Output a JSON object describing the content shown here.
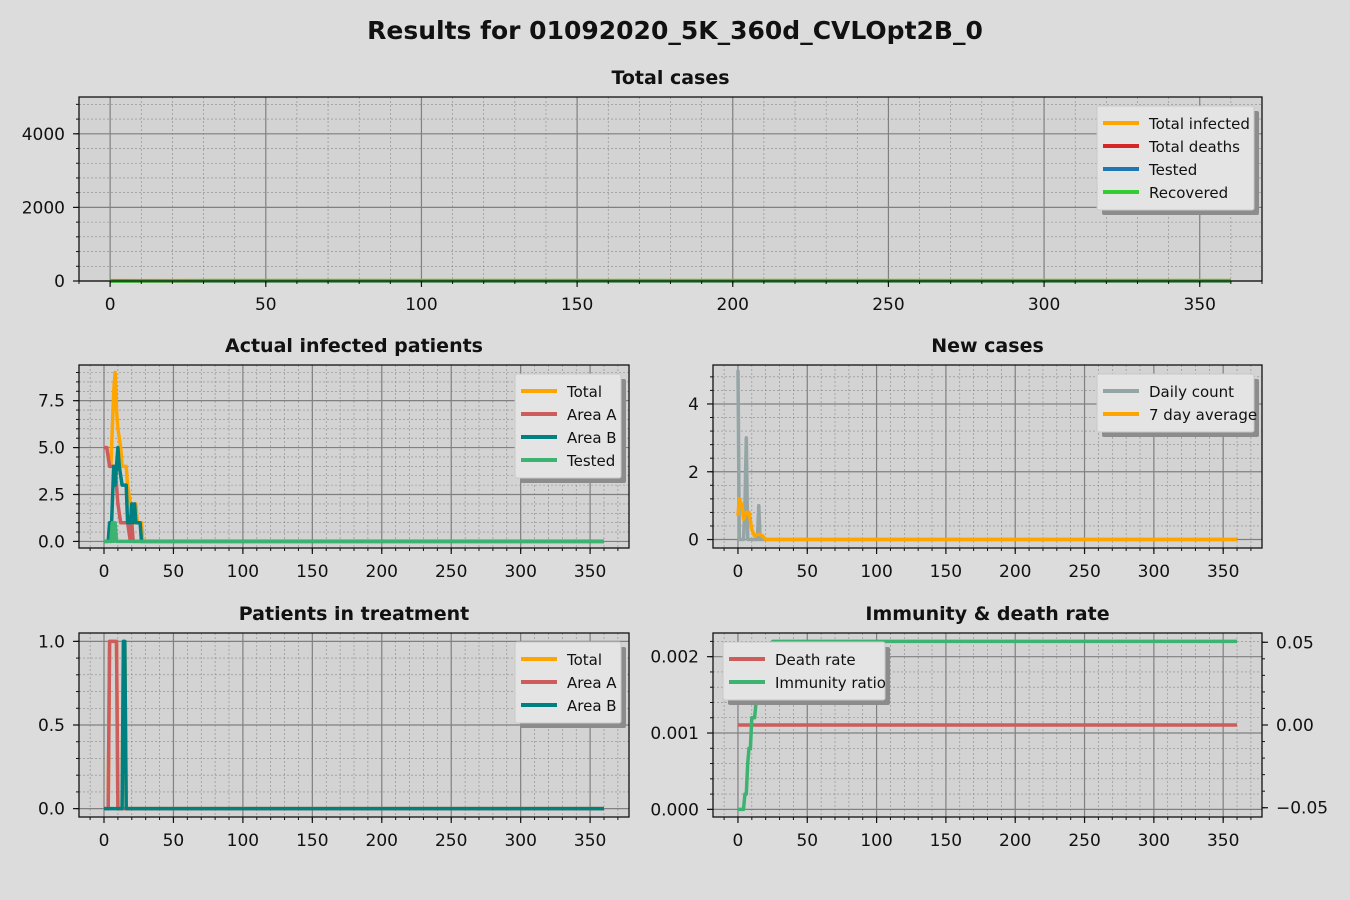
{
  "title": "Results for 01092020_5K_360d_CVLOpt2B_0",
  "chart_data": [
    {
      "id": "total-cases",
      "type": "line",
      "title": "Total cases",
      "xlim": [
        -10,
        370
      ],
      "ylim": [
        0,
        5000
      ],
      "xticks": [
        0,
        50,
        100,
        150,
        200,
        250,
        300,
        350
      ],
      "yticks": [
        0,
        2000,
        4000
      ],
      "ytick_labels": [
        "0",
        "2000",
        "4000"
      ],
      "grid": true,
      "legend_position": "top-right",
      "series": [
        {
          "name": "Total infected",
          "color": "#ffa500",
          "points": [
            [
              0,
              10
            ],
            [
              360,
              10
            ]
          ]
        },
        {
          "name": "Total deaths",
          "color": "#d62728",
          "points": [
            [
              0,
              0
            ],
            [
              360,
              0
            ]
          ]
        },
        {
          "name": "Tested",
          "color": "#1f77b4",
          "points": [
            [
              0,
              4
            ],
            [
              360,
              4
            ]
          ]
        },
        {
          "name": "Recovered",
          "color": "#32cd32",
          "points": [
            [
              0,
              0
            ],
            [
              10,
              2
            ],
            [
              30,
              10
            ],
            [
              360,
              10
            ]
          ]
        }
      ]
    },
    {
      "id": "actual-infected",
      "type": "line",
      "title": "Actual infected patients",
      "xlim": [
        -18,
        378
      ],
      "ylim": [
        -0.35,
        9.4
      ],
      "xticks": [
        0,
        50,
        100,
        150,
        200,
        250,
        300,
        350
      ],
      "yticks": [
        0,
        2.5,
        5,
        7.5
      ],
      "ytick_labels": [
        "0.0",
        "2.5",
        "5.0",
        "7.5"
      ],
      "grid": true,
      "legend_position": "top-right",
      "series": [
        {
          "name": "Total",
          "color": "#ffa500",
          "points": [
            [
              0,
              5
            ],
            [
              2,
              5
            ],
            [
              4,
              4
            ],
            [
              5,
              4
            ],
            [
              6,
              6
            ],
            [
              7,
              8
            ],
            [
              8,
              9
            ],
            [
              9,
              7
            ],
            [
              10,
              6
            ],
            [
              12,
              5
            ],
            [
              13,
              4
            ],
            [
              16,
              4
            ],
            [
              17,
              3
            ],
            [
              19,
              2
            ],
            [
              20,
              1
            ],
            [
              22,
              1
            ],
            [
              23,
              2
            ],
            [
              24,
              1
            ],
            [
              25,
              1
            ],
            [
              27,
              1
            ],
            [
              28,
              0
            ],
            [
              360,
              0
            ]
          ]
        },
        {
          "name": "Area A",
          "color": "#cd5c5c",
          "points": [
            [
              0,
              5
            ],
            [
              2,
              5
            ],
            [
              4,
              4
            ],
            [
              6,
              4
            ],
            [
              8,
              4
            ],
            [
              10,
              2
            ],
            [
              12,
              1
            ],
            [
              15,
              1
            ],
            [
              17,
              1
            ],
            [
              19,
              0
            ],
            [
              20,
              1
            ],
            [
              21,
              0
            ],
            [
              360,
              0
            ]
          ]
        },
        {
          "name": "Area B",
          "color": "#008080",
          "points": [
            [
              0,
              0
            ],
            [
              3,
              0
            ],
            [
              4,
              1
            ],
            [
              5,
              0
            ],
            [
              6,
              2
            ],
            [
              7,
              4
            ],
            [
              8,
              3
            ],
            [
              9,
              4
            ],
            [
              10,
              5
            ],
            [
              11,
              4
            ],
            [
              13,
              3
            ],
            [
              16,
              3
            ],
            [
              17,
              1
            ],
            [
              19,
              1
            ],
            [
              20,
              2
            ],
            [
              21,
              1
            ],
            [
              22,
              2
            ],
            [
              23,
              1
            ],
            [
              26,
              1
            ],
            [
              27,
              0
            ],
            [
              360,
              0
            ]
          ]
        },
        {
          "name": "Tested",
          "color": "#3cb371",
          "points": [
            [
              0,
              0
            ],
            [
              5,
              0
            ],
            [
              6,
              1
            ],
            [
              7,
              0
            ],
            [
              8,
              1
            ],
            [
              9,
              0
            ],
            [
              360,
              0
            ]
          ]
        }
      ]
    },
    {
      "id": "new-cases",
      "type": "line",
      "title": "New cases",
      "xlim": [
        -18,
        378
      ],
      "ylim": [
        -0.25,
        5.15
      ],
      "xticks": [
        0,
        50,
        100,
        150,
        200,
        250,
        300,
        350
      ],
      "yticks": [
        0,
        2,
        4
      ],
      "ytick_labels": [
        "0",
        "2",
        "4"
      ],
      "grid": true,
      "legend_position": "top-right",
      "series": [
        {
          "name": "Daily count",
          "color": "#95a5a6",
          "points": [
            [
              0,
              5
            ],
            [
              1,
              0
            ],
            [
              4,
              0
            ],
            [
              5,
              1
            ],
            [
              6,
              3
            ],
            [
              7,
              0
            ],
            [
              14,
              0
            ],
            [
              15,
              1
            ],
            [
              16,
              0
            ],
            [
              360,
              0
            ]
          ]
        },
        {
          "name": "7 day average",
          "color": "#ffa500",
          "points": [
            [
              0,
              0.7
            ],
            [
              1,
              1.2
            ],
            [
              3,
              1.0
            ],
            [
              4,
              0.6
            ],
            [
              6,
              0.8
            ],
            [
              8,
              0.8
            ],
            [
              10,
              0.3
            ],
            [
              12,
              0.1
            ],
            [
              14,
              0.15
            ],
            [
              16,
              0.15
            ],
            [
              18,
              0.1
            ],
            [
              20,
              0
            ],
            [
              360,
              0
            ]
          ]
        }
      ]
    },
    {
      "id": "patients-in-treatment",
      "type": "line",
      "title": "Patients in treatment",
      "xlim": [
        -18,
        378
      ],
      "ylim": [
        -0.05,
        1.05
      ],
      "xticks": [
        0,
        50,
        100,
        150,
        200,
        250,
        300,
        350
      ],
      "yticks": [
        0,
        0.5,
        1
      ],
      "ytick_labels": [
        "0.0",
        "0.5",
        "1.0"
      ],
      "grid": true,
      "legend_position": "top-right",
      "series": [
        {
          "name": "Total",
          "color": "#ffa500",
          "points": [
            [
              0,
              0
            ],
            [
              3,
              0
            ],
            [
              4,
              1
            ],
            [
              9,
              1
            ],
            [
              10,
              0
            ],
            [
              13,
              0
            ],
            [
              14,
              1
            ],
            [
              15,
              1
            ],
            [
              16,
              0
            ],
            [
              360,
              0
            ]
          ]
        },
        {
          "name": "Area A",
          "color": "#cd5c5c",
          "points": [
            [
              0,
              0
            ],
            [
              3,
              0
            ],
            [
              4,
              1
            ],
            [
              9,
              1
            ],
            [
              10,
              0
            ],
            [
              360,
              0
            ]
          ]
        },
        {
          "name": "Area B",
          "color": "#008080",
          "points": [
            [
              0,
              0
            ],
            [
              13,
              0
            ],
            [
              14,
              1
            ],
            [
              15,
              1
            ],
            [
              16,
              0
            ],
            [
              360,
              0
            ]
          ]
        }
      ]
    },
    {
      "id": "immunity-death-rate",
      "type": "line",
      "title": "Immunity & death rate",
      "xlim": [
        -18,
        378
      ],
      "ylim": [
        -0.0001,
        0.00231
      ],
      "xticks": [
        0,
        50,
        100,
        150,
        200,
        250,
        300,
        350
      ],
      "yticks": [
        0,
        0.001,
        0.002
      ],
      "ytick_labels": [
        "0.000",
        "0.001",
        "0.002"
      ],
      "y2lim": [
        -0.0556,
        0.0556
      ],
      "y2ticks": [
        -0.05,
        0,
        0.05
      ],
      "y2tick_labels": [
        "−0.05",
        "0.00",
        "0.05"
      ],
      "grid": true,
      "legend_position": "top-left",
      "series": [
        {
          "name": "Death rate",
          "color": "#cd5c5c",
          "axis": "right",
          "points": [
            [
              0,
              0
            ],
            [
              360,
              0
            ]
          ]
        },
        {
          "name": "Immunity ratio",
          "color": "#3cb371",
          "axis": "left",
          "points": [
            [
              0,
              0
            ],
            [
              4,
              0
            ],
            [
              5,
              0.0002
            ],
            [
              6,
              0.0002
            ],
            [
              7,
              0.0006
            ],
            [
              8,
              0.0008
            ],
            [
              9,
              0.0008
            ],
            [
              10,
              0.0012
            ],
            [
              12,
              0.0012
            ],
            [
              13,
              0.0014
            ],
            [
              15,
              0.0014
            ],
            [
              16,
              0.0016
            ],
            [
              18,
              0.0018
            ],
            [
              20,
              0.0018
            ],
            [
              22,
              0.002
            ],
            [
              25,
              0.0022
            ],
            [
              360,
              0.0022
            ]
          ]
        }
      ]
    }
  ]
}
